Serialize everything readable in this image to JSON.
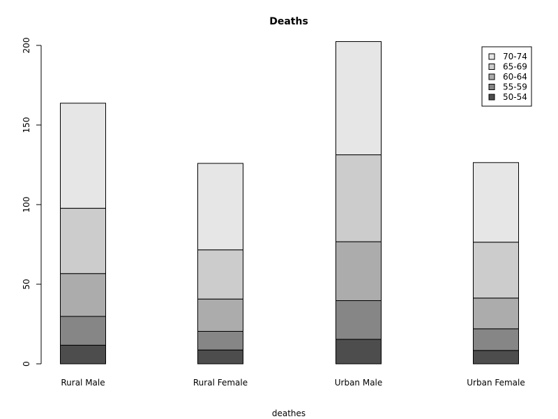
{
  "chart_data": {
    "type": "bar",
    "stacked": true,
    "title": "Deaths",
    "xlabel": "deathes",
    "ylabel": "",
    "ylim": [
      0,
      202.5
    ],
    "yticks": [
      0,
      50,
      100,
      150,
      200
    ],
    "categories": [
      "Rural Male",
      "Rural Female",
      "Urban Male",
      "Urban Female"
    ],
    "series": [
      {
        "name": "50-54",
        "color": "#4d4d4d",
        "values": [
          11.7,
          8.7,
          15.4,
          8.4
        ]
      },
      {
        "name": "55-59",
        "color": "#868686",
        "values": [
          18.1,
          11.7,
          24.3,
          13.6
        ]
      },
      {
        "name": "60-64",
        "color": "#acacac",
        "values": [
          26.9,
          20.3,
          37.0,
          19.3
        ]
      },
      {
        "name": "65-69",
        "color": "#cccccc",
        "values": [
          41.0,
          30.9,
          54.6,
          35.1
        ]
      },
      {
        "name": "70-74",
        "color": "#e6e6e6",
        "values": [
          66.0,
          54.3,
          71.1,
          50.0
        ]
      }
    ],
    "legend": {
      "position": "top-right",
      "order": [
        "70-74",
        "65-69",
        "60-64",
        "55-59",
        "50-54"
      ]
    },
    "grid": false
  }
}
